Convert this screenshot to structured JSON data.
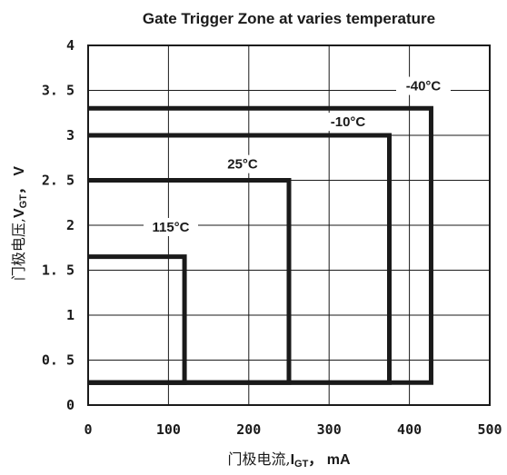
{
  "chart_data": {
    "type": "line",
    "title": "Gate Trigger Zone at varies temperature",
    "xlabel": {
      "cn": "门极电流,",
      "sym": "I",
      "sub": "GT",
      "unit": "， mA"
    },
    "ylabel": {
      "cn": "门极电压,",
      "sym": "V",
      "sub": "GT",
      "unit": "， V"
    },
    "xlim": [
      0,
      500
    ],
    "ylim": [
      0,
      4
    ],
    "x_ticks": [
      0,
      100,
      200,
      300,
      400,
      500
    ],
    "y_ticks": [
      0,
      0.5,
      1,
      1.5,
      2,
      2.5,
      3,
      3.5,
      4
    ],
    "x_tick_labels": [
      "0",
      "100",
      "200",
      "300",
      "400",
      "500"
    ],
    "y_tick_labels": [
      "0",
      "0. 5",
      "1",
      "1. 5",
      "2",
      "2. 5",
      "3",
      "3. 5",
      "4"
    ],
    "grid": true,
    "series": [
      {
        "name": "-40°C",
        "x": [
          0,
          427,
          427,
          0
        ],
        "y": [
          3.3,
          3.3,
          0.25,
          0.25
        ]
      },
      {
        "name": "-10°C",
        "x": [
          0,
          375,
          375,
          0
        ],
        "y": [
          3.0,
          3.0,
          0.25,
          0.25
        ]
      },
      {
        "name": "25°C",
        "x": [
          0,
          250,
          250,
          0
        ],
        "y": [
          2.5,
          2.5,
          0.25,
          0.25
        ]
      },
      {
        "name": "115°C",
        "x": [
          0,
          120,
          120,
          0
        ],
        "y": [
          1.65,
          1.65,
          0.25,
          0.25
        ]
      }
    ]
  }
}
